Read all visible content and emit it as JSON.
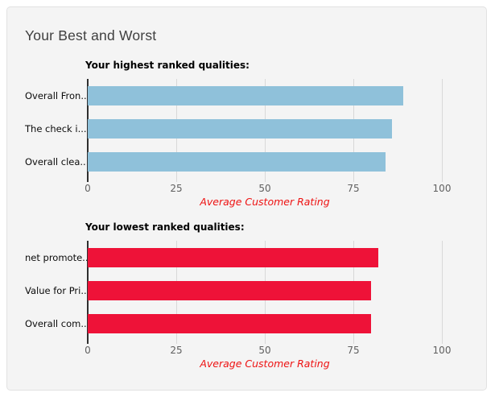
{
  "panel": {
    "title": "Your Best and Worst"
  },
  "chart_data": [
    {
      "type": "bar",
      "orientation": "horizontal",
      "title": "Your highest ranked qualities:",
      "categories": [
        "Overall Fron...",
        "The check i...",
        "Overall clea..."
      ],
      "values": [
        89,
        86,
        84
      ],
      "xlabel": "Average Customer Rating",
      "ylabel": "",
      "xlim": [
        0,
        100
      ],
      "xticks": [
        "0",
        "25",
        "50",
        "75",
        "100"
      ],
      "grid": true,
      "legend": false,
      "bar_color": "#8fc1da"
    },
    {
      "type": "bar",
      "orientation": "horizontal",
      "title": "Your lowest ranked qualities:",
      "categories": [
        "net promote...",
        "Value for Pri...",
        "Overall com..."
      ],
      "values": [
        82,
        80,
        80
      ],
      "xlabel": "Average Customer Rating",
      "ylabel": "",
      "xlim": [
        0,
        100
      ],
      "xticks": [
        "0",
        "25",
        "50",
        "75",
        "100"
      ],
      "grid": true,
      "legend": false,
      "bar_color": "#ee1238"
    }
  ],
  "style": {
    "panel_background": "#f4f4f4",
    "panel_border": "#e2e2e2",
    "gridline_color": "#d8d8d8",
    "axis_line_color": "#2f2f2f",
    "tick_label_color": "#606060",
    "axis_title_color": "#ee1212",
    "header_color": "#3f3f3f"
  }
}
